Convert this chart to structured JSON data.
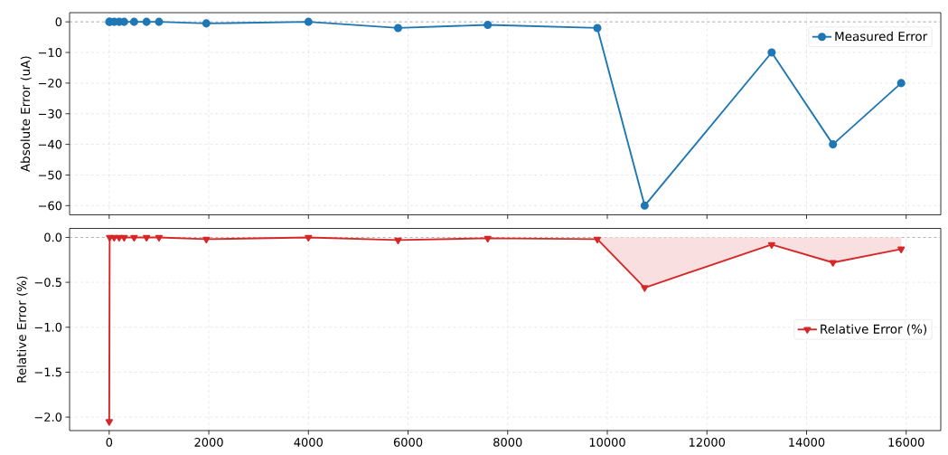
{
  "chart_data": [
    {
      "type": "line",
      "ylabel": "Absolute Error (uA)",
      "x": [
        1,
        10,
        100,
        200,
        300,
        500,
        750,
        1000,
        1950,
        4000,
        5800,
        7600,
        9800,
        10750,
        13300,
        14530,
        15900
      ],
      "series": [
        {
          "name": "Measured Error",
          "color": "#1f77b4",
          "values": [
            0,
            0,
            0,
            0,
            0,
            0,
            0,
            0,
            -0.5,
            0,
            -2,
            -1,
            -2,
            -60,
            -10,
            -40,
            -20
          ]
        }
      ],
      "xlim": [
        -795,
        16695
      ],
      "ylim": [
        -63,
        3
      ],
      "xticks": [
        0,
        2000,
        4000,
        6000,
        8000,
        10000,
        12000,
        14000,
        16000
      ],
      "yticks": [
        {
          "value": -60,
          "label": "−60"
        },
        {
          "value": -50,
          "label": "−50"
        },
        {
          "value": -40,
          "label": "−40"
        },
        {
          "value": -30,
          "label": "−30"
        },
        {
          "value": -20,
          "label": "−20"
        },
        {
          "value": -10,
          "label": "−10"
        },
        0
      ],
      "tick_labels": "y",
      "grid": true,
      "legend": "top right",
      "marker": "circle",
      "line_style": "solid",
      "ref_lines": [
        {
          "axis": "y",
          "value": 0,
          "color": "#a0a0a0",
          "line_style": "dashed"
        }
      ]
    },
    {
      "type": "line",
      "ylabel": "Relative Error (%)",
      "x": [
        1,
        10,
        100,
        200,
        300,
        500,
        750,
        1000,
        1950,
        4000,
        5800,
        7600,
        9800,
        10750,
        13300,
        14530,
        15900
      ],
      "series": [
        {
          "name": "Relative Error (%)",
          "color": "#d62728",
          "values": [
            -2.05,
            0,
            0,
            0,
            0,
            0,
            0,
            0,
            -0.02,
            0,
            -0.03,
            -0.01,
            -0.02,
            -0.56,
            -0.08,
            -0.28,
            -0.13
          ]
        },
        {
          "type": "area",
          "color": "#f9dfdf",
          "marker": "none",
          "x": [
            9800,
            10750,
            13300,
            14530,
            15900
          ],
          "values": [
            -0.02,
            -0.56,
            -0.08,
            -0.28,
            -0.13
          ]
        }
      ],
      "xlim": [
        -795,
        16695
      ],
      "ylim": [
        -2.15,
        0.1
      ],
      "xticks": [
        0,
        2000,
        4000,
        6000,
        8000,
        10000,
        12000,
        14000,
        16000
      ],
      "yticks": [
        {
          "value": -2,
          "label": "−2.0"
        },
        {
          "value": -1.5,
          "label": "−1.5"
        },
        {
          "value": -1,
          "label": "−1.0"
        },
        {
          "value": -0.5,
          "label": "−0.5"
        },
        {
          "value": 0,
          "label": "0.0"
        }
      ],
      "grid": true,
      "legend": "right",
      "marker": "triangle",
      "line_style": "solid",
      "ref_lines": [
        {
          "axis": "y",
          "value": 0,
          "color": "#a0a0a0",
          "line_style": "dashed"
        }
      ]
    }
  ]
}
